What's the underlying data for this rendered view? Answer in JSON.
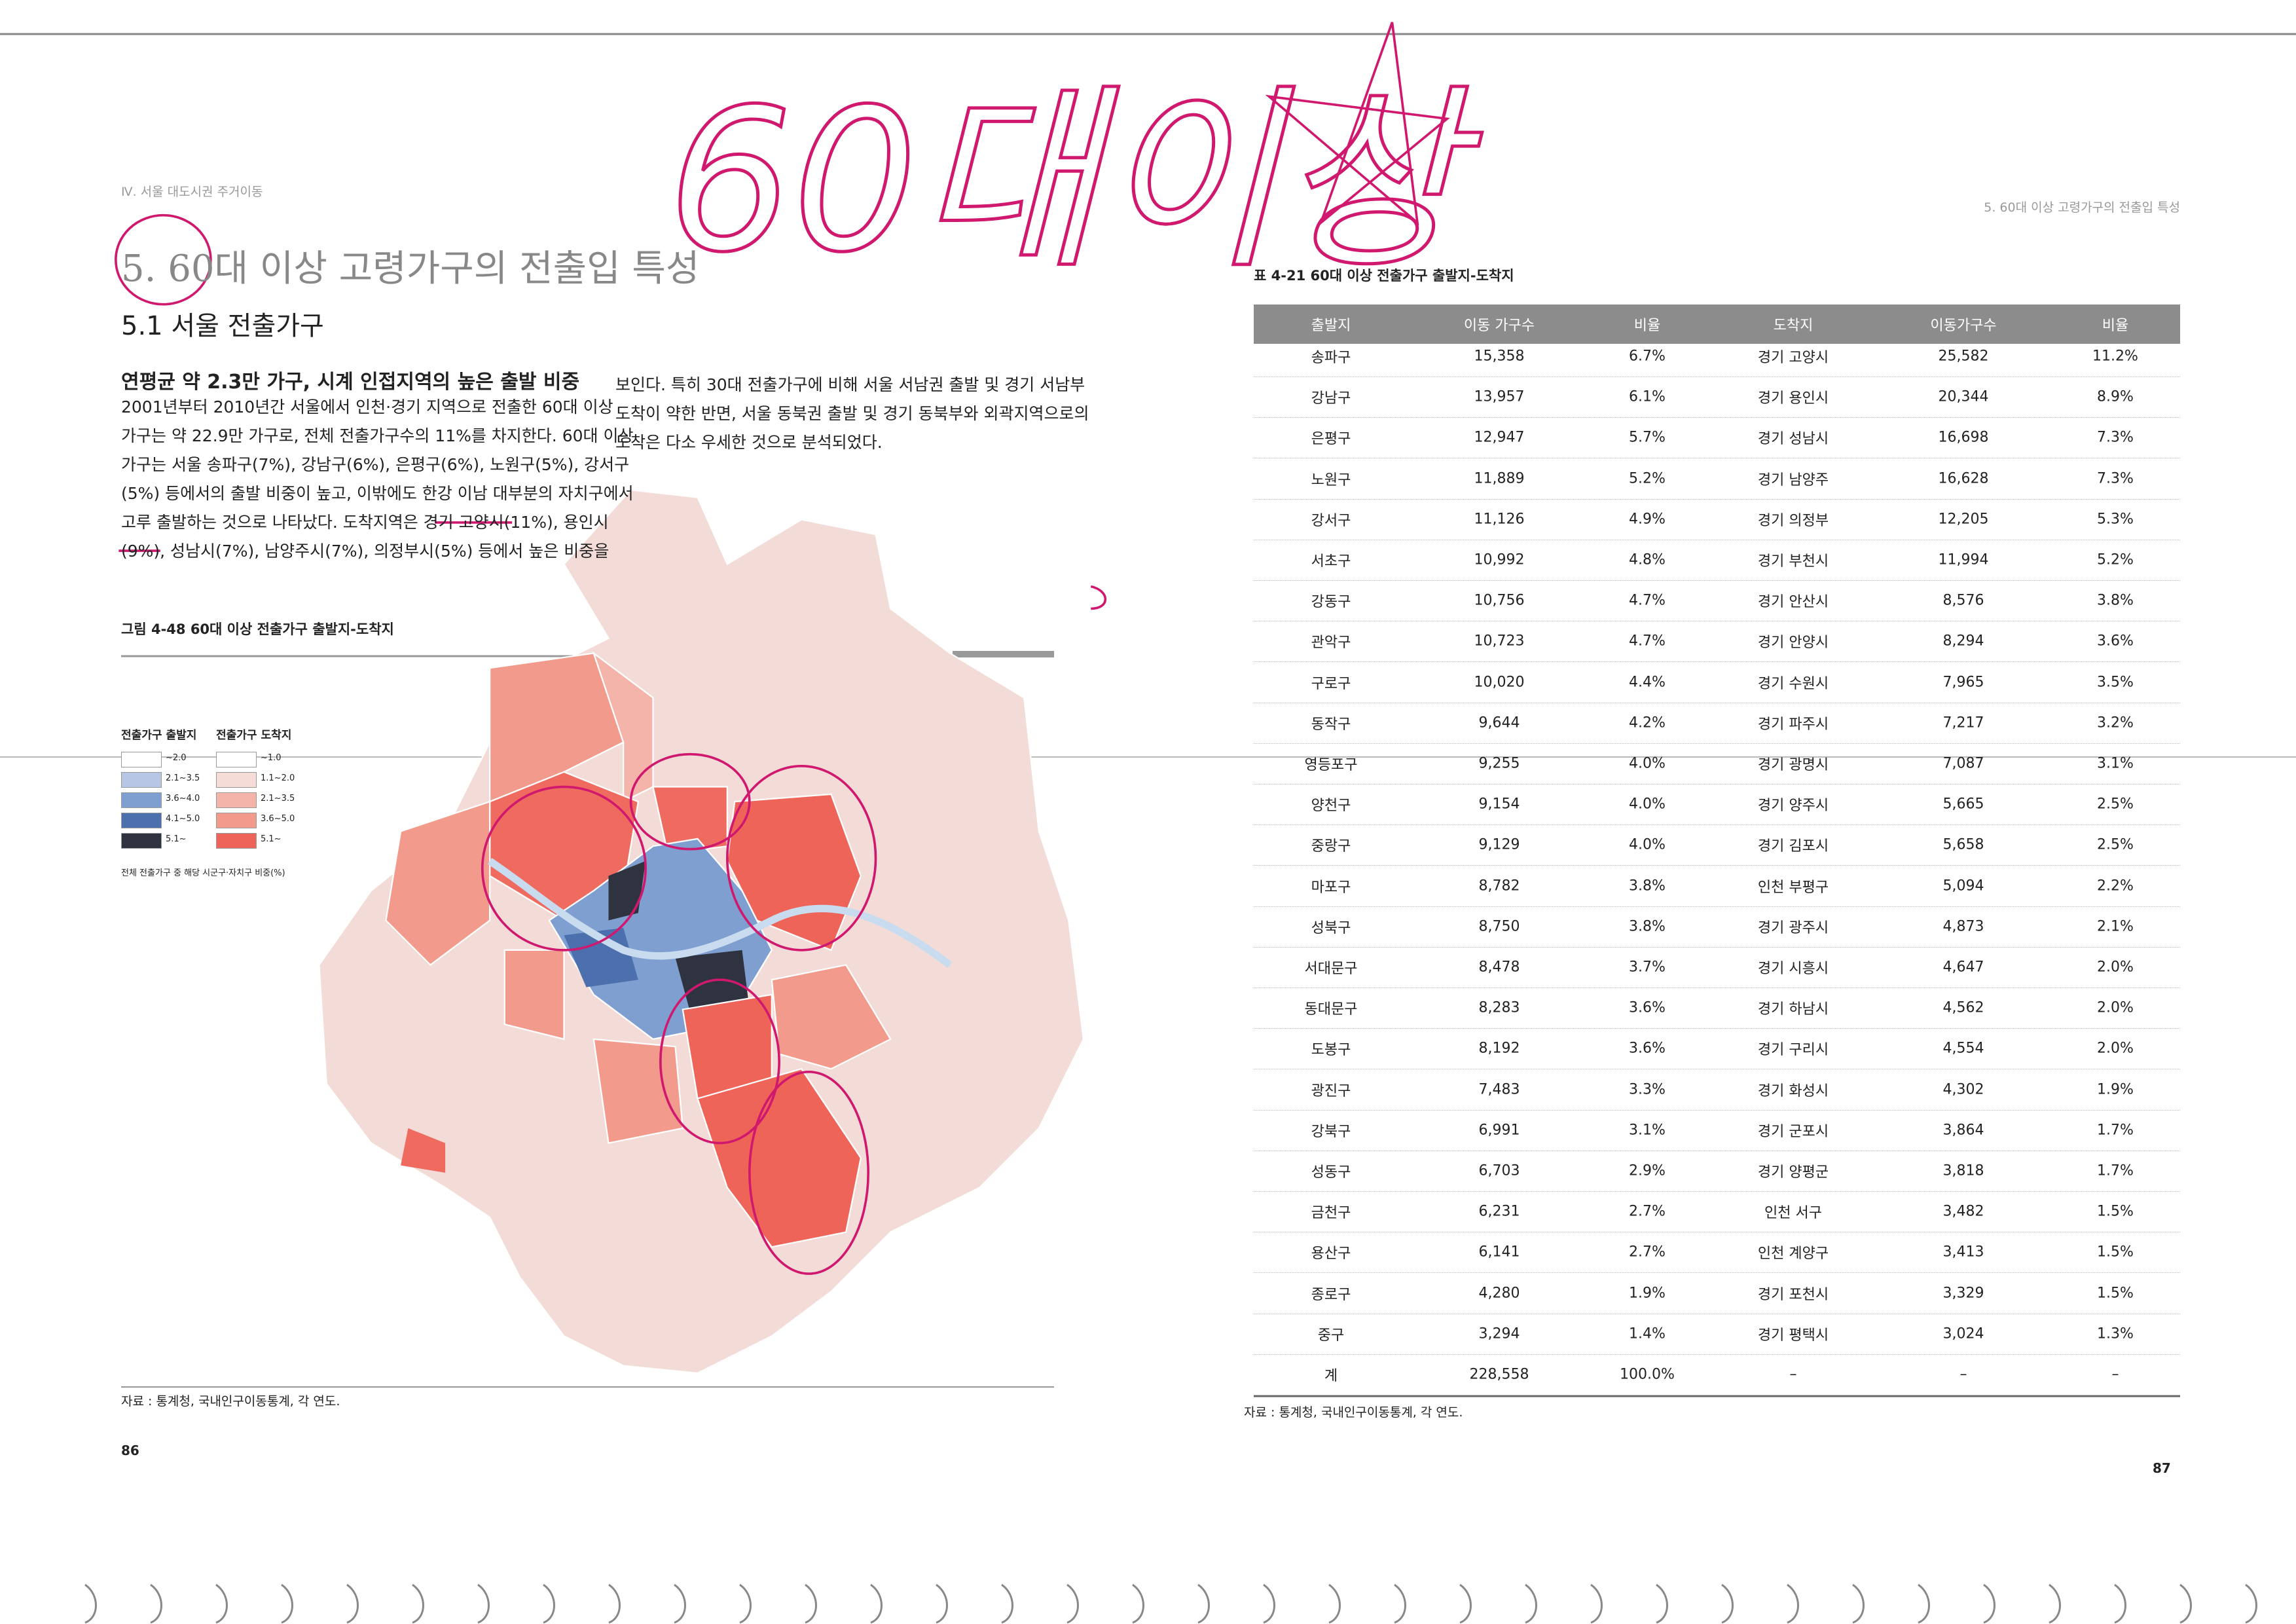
{
  "header": {
    "left": "Ⅳ. 서울 대도시권 주거이동",
    "right": "5. 60대 이상 고령가구의 전출입 특성"
  },
  "title": "5. 60대 이상 고령가구의 전출입 특성",
  "section": "5.1 서울 전출가구",
  "subtitle": "연평균 약 2.3만 가구, 시계 인접지역의 높은 출발 비중",
  "body_left": [
    "2001년부터 2010년간 서울에서 인천·경기 지역으로 전출한 60대 이상",
    "가구는 약 22.9만 가구로, 전체 전출가구수의 11%를 차지한다. 60대 이상",
    "가구는 서울 송파구(7%), 강남구(6%), 은평구(6%), 노원구(5%), 강서구",
    "(5%) 등에서의 출발 비중이 높고, 이밖에도 한강 이남 대부분의 자치구에서",
    "고루 출발하는 것으로 나타났다. 도착지역은 경기 고양시(11%), 용인시",
    "(9%), 성남시(7%), 남양주시(7%), 의정부시(5%) 등에서 높은 비중을"
  ],
  "body_right": [
    "보인다. 특히 30대 전출가구에 비해 서울 서남권 출발 및 경기 서남부",
    "도착이 약한 반면, 서울 동북권 출발 및 경기 동북부와 외곽지역으로의",
    "도착은 다소 우세한 것으로 분석되었다."
  ],
  "figure": {
    "caption": "그림 4-48 60대 이상 전출가구 출발지-도착지",
    "legend": {
      "origin_title": "전출가구 출발지",
      "destination_title": "전출가구 도착지",
      "origin": [
        "~2.0",
        "2.1~3.5",
        "3.6~4.0",
        "4.1~5.0",
        "5.1~"
      ],
      "destination": [
        "~1.0",
        "1.1~2.0",
        "2.1~3.5",
        "3.6~5.0",
        "5.1~"
      ],
      "note": "전체 전출가구 중 해당 시군구·자치구 비중(%)"
    },
    "source": "자료 : 통계청, 국내인구이동통계, 각 연도."
  },
  "table": {
    "caption": "표 4-21 60대 이상 전출가구 출발지-도착지",
    "header": [
      "출발지",
      "이동 가구수",
      "비율",
      "도착지",
      "이동가구수",
      "비율"
    ],
    "rows": [
      [
        "송파구",
        "15,358",
        "6.7%",
        "경기 고양시",
        "25,582",
        "11.2%"
      ],
      [
        "강남구",
        "13,957",
        "6.1%",
        "경기 용인시",
        "20,344",
        "8.9%"
      ],
      [
        "은평구",
        "12,947",
        "5.7%",
        "경기 성남시",
        "16,698",
        "7.3%"
      ],
      [
        "노원구",
        "11,889",
        "5.2%",
        "경기 남양주",
        "16,628",
        "7.3%"
      ],
      [
        "강서구",
        "11,126",
        "4.9%",
        "경기 의정부",
        "12,205",
        "5.3%"
      ],
      [
        "서초구",
        "10,992",
        "4.8%",
        "경기 부천시",
        "11,994",
        "5.2%"
      ],
      [
        "강동구",
        "10,756",
        "4.7%",
        "경기 안산시",
        "8,576",
        "3.8%"
      ],
      [
        "관악구",
        "10,723",
        "4.7%",
        "경기 안양시",
        "8,294",
        "3.6%"
      ],
      [
        "구로구",
        "10,020",
        "4.4%",
        "경기 수원시",
        "7,965",
        "3.5%"
      ],
      [
        "동작구",
        "9,644",
        "4.2%",
        "경기 파주시",
        "7,217",
        "3.2%"
      ],
      [
        "영등포구",
        "9,255",
        "4.0%",
        "경기 광명시",
        "7,087",
        "3.1%"
      ],
      [
        "양천구",
        "9,154",
        "4.0%",
        "경기 양주시",
        "5,665",
        "2.5%"
      ],
      [
        "중랑구",
        "9,129",
        "4.0%",
        "경기 김포시",
        "5,658",
        "2.5%"
      ],
      [
        "마포구",
        "8,782",
        "3.8%",
        "인천 부평구",
        "5,094",
        "2.2%"
      ],
      [
        "성북구",
        "8,750",
        "3.8%",
        "경기 광주시",
        "4,873",
        "2.1%"
      ],
      [
        "서대문구",
        "8,478",
        "3.7%",
        "경기 시흥시",
        "4,647",
        "2.0%"
      ],
      [
        "동대문구",
        "8,283",
        "3.6%",
        "경기 하남시",
        "4,562",
        "2.0%"
      ],
      [
        "도봉구",
        "8,192",
        "3.6%",
        "경기 구리시",
        "4,554",
        "2.0%"
      ],
      [
        "광진구",
        "7,483",
        "3.3%",
        "경기 화성시",
        "4,302",
        "1.9%"
      ],
      [
        "강북구",
        "6,991",
        "3.1%",
        "경기 군포시",
        "3,864",
        "1.7%"
      ],
      [
        "성동구",
        "6,703",
        "2.9%",
        "경기 양평군",
        "3,818",
        "1.7%"
      ],
      [
        "금천구",
        "6,231",
        "2.7%",
        "인천 서구",
        "3,482",
        "1.5%"
      ],
      [
        "용산구",
        "6,141",
        "2.7%",
        "인천 계양구",
        "3,413",
        "1.5%"
      ],
      [
        "종로구",
        "4,280",
        "1.9%",
        "경기 포천시",
        "3,329",
        "1.5%"
      ],
      [
        "중구",
        "3,294",
        "1.4%",
        "경기 평택시",
        "3,024",
        "1.3%"
      ],
      [
        "계",
        "228,558",
        "100.0%",
        "–",
        "–",
        "–"
      ]
    ],
    "source": "자료 : 통계청, 국내인구이동통계, 각 연도."
  },
  "page_numbers": {
    "left": "86",
    "right": "87"
  },
  "annotation": "60대이상"
}
